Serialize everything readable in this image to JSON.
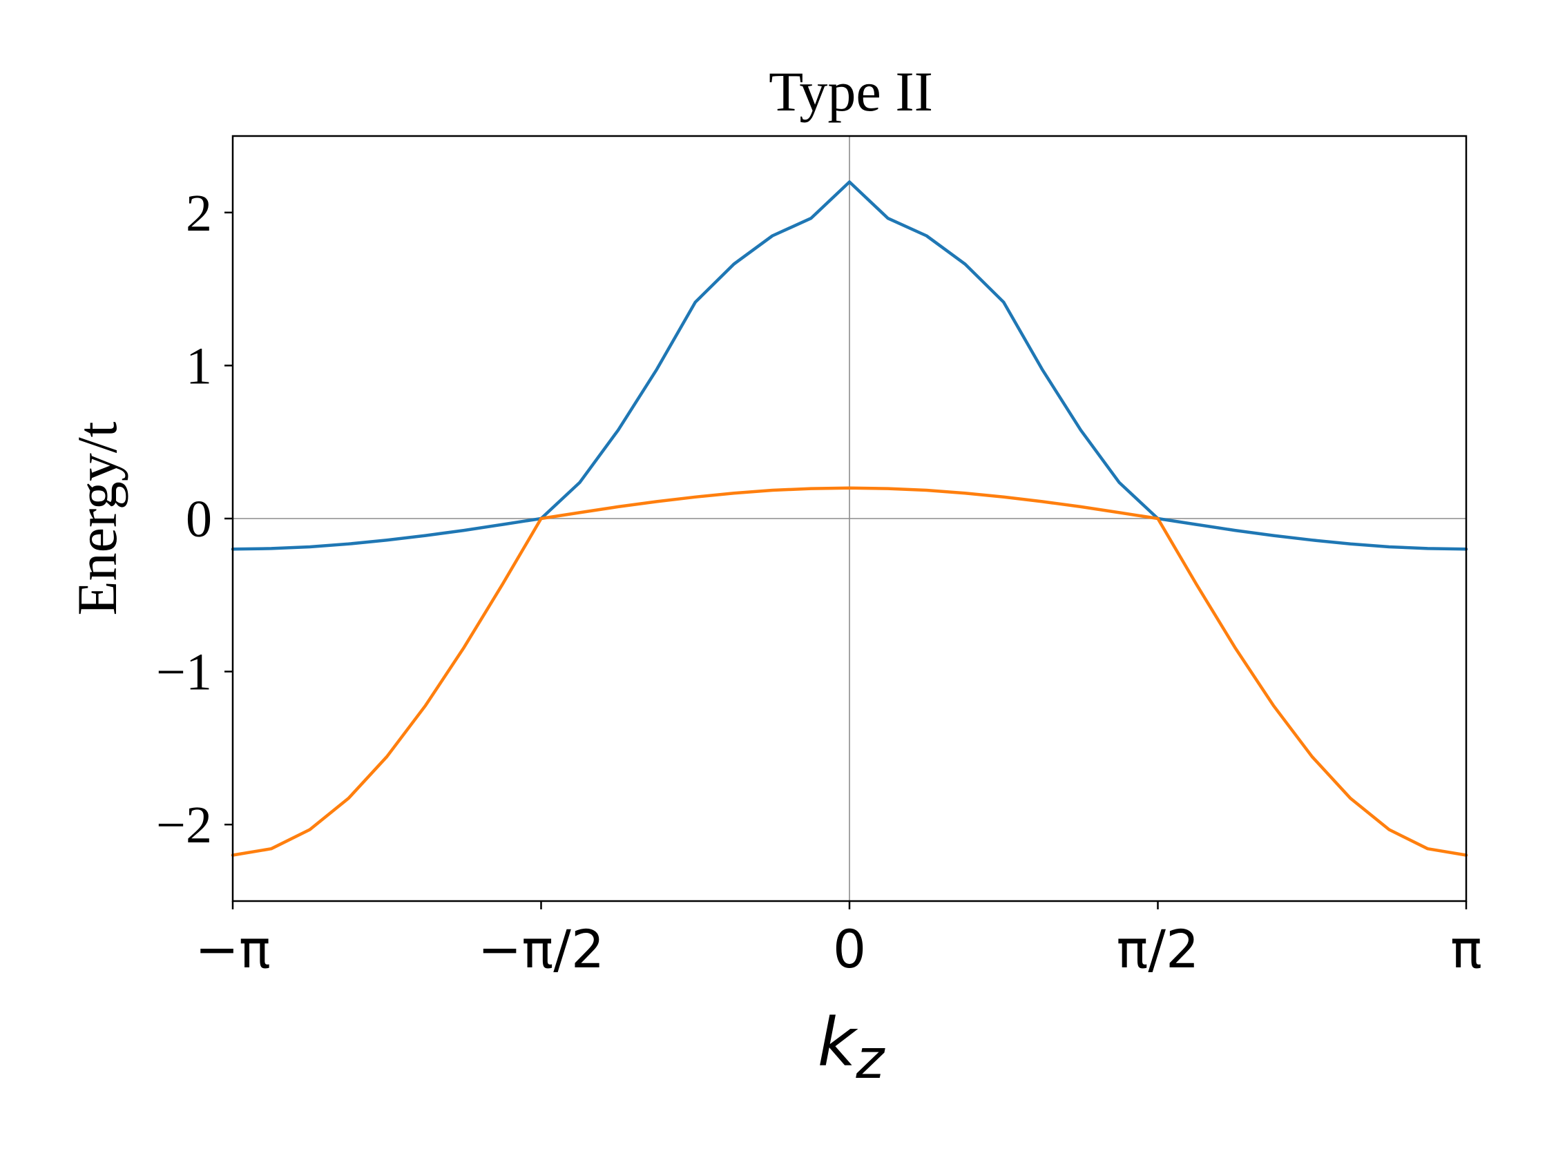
{
  "chart_data": {
    "type": "line",
    "title": "Type II",
    "xlabel_base": "k",
    "xlabel_sub": "z",
    "ylabel": "Energy/t",
    "xlim": [
      -3.14159265,
      3.14159265
    ],
    "ylim": [
      -2.5,
      2.5
    ],
    "xticks": [
      {
        "value": -3.14159265,
        "label": "−π"
      },
      {
        "value": -1.57079633,
        "label": "−π/2"
      },
      {
        "value": 0,
        "label": "0"
      },
      {
        "value": 1.57079633,
        "label": "π/2"
      },
      {
        "value": 3.14159265,
        "label": "π"
      }
    ],
    "yticks": [
      {
        "value": -2,
        "label": "−2"
      },
      {
        "value": -1,
        "label": "−1"
      },
      {
        "value": 0,
        "label": "0"
      },
      {
        "value": 1,
        "label": "1"
      },
      {
        "value": 2,
        "label": "2"
      }
    ],
    "reference_lines": {
      "x": 0,
      "y": 0,
      "color": "#8c8c8c"
    },
    "grid": false,
    "legend": "none",
    "series": [
      {
        "color": "#1f77b4",
        "x": [
          -3.1416,
          -2.9452,
          -2.7489,
          -2.5525,
          -2.3562,
          -2.1598,
          -1.9635,
          -1.7671,
          -1.5708,
          -1.3744,
          -1.1781,
          -0.9817,
          -0.7854,
          -0.589,
          -0.3927,
          -0.1963,
          0,
          0.1963,
          0.3927,
          0.589,
          0.7854,
          0.9817,
          1.1781,
          1.3744,
          1.5708,
          1.7671,
          1.9635,
          2.1598,
          2.3562,
          2.5525,
          2.7489,
          2.9452,
          3.1416
        ],
        "y": [
          -0.2,
          -0.196,
          -0.185,
          -0.166,
          -0.141,
          -0.111,
          -0.077,
          -0.039,
          0.0,
          0.235,
          0.578,
          0.975,
          1.414,
          1.663,
          1.848,
          1.962,
          2.2,
          1.962,
          1.848,
          1.663,
          1.414,
          0.975,
          0.578,
          0.235,
          0.0,
          -0.039,
          -0.077,
          -0.111,
          -0.141,
          -0.166,
          -0.185,
          -0.196,
          -0.2
        ]
      },
      {
        "color": "#ff7f0e",
        "x": [
          -3.1416,
          -2.9452,
          -2.7489,
          -2.5525,
          -2.3562,
          -2.1598,
          -1.9635,
          -1.7671,
          -1.5708,
          -1.3744,
          -1.1781,
          -0.9817,
          -0.7854,
          -0.589,
          -0.3927,
          -0.1963,
          0,
          0.1963,
          0.3927,
          0.589,
          0.7854,
          0.9817,
          1.1781,
          1.3744,
          1.5708,
          1.7671,
          1.9635,
          2.1598,
          2.3562,
          2.5525,
          2.7489,
          2.9452,
          3.1416
        ],
        "y": [
          -2.2,
          -2.158,
          -2.033,
          -1.829,
          -1.556,
          -1.222,
          -0.842,
          -0.429,
          0.0,
          0.039,
          0.077,
          0.111,
          0.141,
          0.166,
          0.185,
          0.196,
          0.2,
          0.196,
          0.185,
          0.166,
          0.141,
          0.111,
          0.077,
          0.039,
          0.0,
          -0.429,
          -0.842,
          -1.222,
          -1.556,
          -1.829,
          -2.033,
          -2.158,
          -2.2
        ]
      }
    ]
  }
}
